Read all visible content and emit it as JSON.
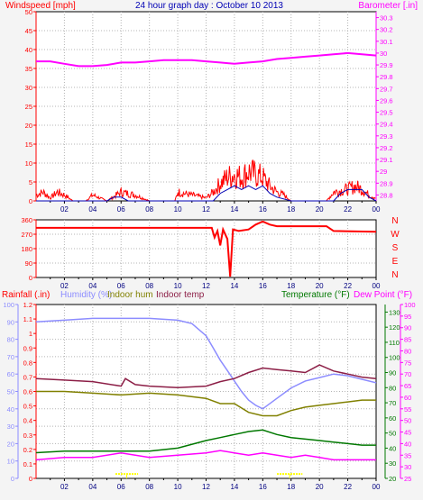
{
  "header": {
    "left_title": "Windspeed [mph]",
    "center_title": "24 hour graph day : October 10 2013",
    "right_title": "Barometer [.in]"
  },
  "direction_labels": [
    "N",
    "W",
    "S",
    "E",
    "N"
  ],
  "bottom_header": {
    "rain": "Rainfall (.in)",
    "humidity": "Humidity (%)",
    "indoor_hum": "Indoor hum",
    "indoor_temp": "Indoor temp",
    "temperature": "Temperature (°F)",
    "dew_point": "Dew Point (°F)"
  },
  "colors": {
    "background": "#f4f4f4",
    "plot_bg": "#ffffff",
    "grid": "#b4b4b4",
    "axis": "#000000",
    "red": "#ff0000",
    "blue": "#0000b4",
    "magenta": "#ff00ff",
    "humidity": "#8c8cff",
    "indoor_hum": "#808000",
    "indoor_temp": "#8c1e46",
    "temperature": "#007800",
    "dew_point": "#ff00ff",
    "rain": "#ffff00"
  },
  "chart_data": [
    {
      "type": "line",
      "name": "wind-barometer",
      "x_ticks": [
        "02",
        "04",
        "06",
        "08",
        "10",
        "12",
        "14",
        "16",
        "18",
        "20",
        "22",
        "00"
      ],
      "xlim": [
        0,
        24
      ],
      "left_axis": {
        "ticks": [
          0,
          5,
          10,
          15,
          20,
          25,
          30,
          35,
          40,
          45,
          50
        ],
        "ylim": [
          0,
          50
        ]
      },
      "right_axis": {
        "ticks": [
          28.8,
          28.9,
          29,
          29.1,
          29.2,
          29.3,
          29.4,
          29.5,
          29.6,
          29.7,
          29.8,
          29.9,
          30,
          30.1,
          30.2,
          30.3
        ],
        "ylim": [
          28.75,
          30.35
        ]
      },
      "barometer": [
        [
          0,
          29.93
        ],
        [
          1,
          29.93
        ],
        [
          2,
          29.91
        ],
        [
          3,
          29.89
        ],
        [
          4,
          29.89
        ],
        [
          5,
          29.9
        ],
        [
          6,
          29.92
        ],
        [
          7,
          29.92
        ],
        [
          8,
          29.93
        ],
        [
          9,
          29.94
        ],
        [
          10,
          29.94
        ],
        [
          11,
          29.94
        ],
        [
          12,
          29.93
        ],
        [
          13,
          29.92
        ],
        [
          14,
          29.91
        ],
        [
          15,
          29.92
        ],
        [
          16,
          29.93
        ],
        [
          17,
          29.95
        ],
        [
          18,
          29.96
        ],
        [
          19,
          29.97
        ],
        [
          20,
          29.98
        ],
        [
          21,
          29.99
        ],
        [
          22,
          30.0
        ],
        [
          23,
          29.99
        ],
        [
          24,
          29.98
        ]
      ],
      "gust_envelope": [
        [
          0,
          2
        ],
        [
          0.5,
          3
        ],
        [
          1,
          1
        ],
        [
          1.5,
          3
        ],
        [
          2,
          2
        ],
        [
          2.6,
          0
        ],
        [
          3.5,
          0
        ],
        [
          4,
          2
        ],
        [
          5,
          0
        ],
        [
          6,
          3
        ],
        [
          7,
          2
        ],
        [
          7.5,
          1
        ],
        [
          8,
          0
        ],
        [
          9.8,
          0
        ],
        [
          10,
          3
        ],
        [
          11,
          2
        ],
        [
          12,
          1
        ],
        [
          12.5,
          3
        ],
        [
          13,
          6
        ],
        [
          13.5,
          8
        ],
        [
          14,
          9
        ],
        [
          14.5,
          8
        ],
        [
          15,
          10
        ],
        [
          15.5,
          9
        ],
        [
          16,
          8
        ],
        [
          16.5,
          5
        ],
        [
          17,
          3
        ],
        [
          17.5,
          2
        ],
        [
          18,
          0
        ],
        [
          20.5,
          0
        ],
        [
          21,
          3
        ],
        [
          22,
          4
        ],
        [
          22.5,
          5
        ],
        [
          23,
          4
        ],
        [
          23.5,
          2
        ],
        [
          24,
          1
        ]
      ],
      "avg_wind": [
        [
          0,
          0
        ],
        [
          5,
          0
        ],
        [
          5.5,
          1
        ],
        [
          6,
          1
        ],
        [
          6.5,
          0
        ],
        [
          12.5,
          0
        ],
        [
          13,
          2
        ],
        [
          13.5,
          3
        ],
        [
          14,
          4
        ],
        [
          14.5,
          3
        ],
        [
          15,
          4
        ],
        [
          15.5,
          3
        ],
        [
          16,
          4
        ],
        [
          16.5,
          2
        ],
        [
          17,
          1
        ],
        [
          18,
          0
        ],
        [
          21,
          0
        ],
        [
          21.5,
          2
        ],
        [
          22,
          3
        ],
        [
          23,
          3
        ],
        [
          23.5,
          1
        ],
        [
          24,
          0
        ]
      ]
    },
    {
      "type": "line",
      "name": "wind-direction",
      "x_ticks": [
        "02",
        "04",
        "06",
        "08",
        "10",
        "12",
        "14",
        "16",
        "18",
        "20",
        "22",
        "00"
      ],
      "xlim": [
        0,
        24
      ],
      "y_ticks": [
        0,
        90,
        180,
        270,
        360
      ],
      "ylim": [
        0,
        360
      ],
      "direction": [
        [
          0,
          310
        ],
        [
          12.4,
          310
        ],
        [
          12.6,
          250
        ],
        [
          12.8,
          290
        ],
        [
          13.0,
          200
        ],
        [
          13.2,
          300
        ],
        [
          13.5,
          240
        ],
        [
          13.7,
          5
        ],
        [
          13.9,
          300
        ],
        [
          14.3,
          290
        ],
        [
          15.0,
          300
        ],
        [
          15.5,
          330
        ],
        [
          16,
          350
        ],
        [
          16.5,
          330
        ],
        [
          17,
          320
        ],
        [
          20.5,
          320
        ],
        [
          21.0,
          290
        ],
        [
          24,
          285
        ]
      ]
    },
    {
      "type": "line",
      "name": "rain-humidity-temperature",
      "x_ticks": [
        "02",
        "04",
        "06",
        "08",
        "10",
        "12",
        "14",
        "16",
        "18",
        "20",
        "22",
        "00"
      ],
      "xlim": [
        0,
        24
      ],
      "humidity_axis": {
        "ticks": [
          0,
          10,
          20,
          30,
          40,
          50,
          60,
          70,
          80,
          90,
          100
        ],
        "ylim": [
          0,
          100
        ]
      },
      "rain_axis": {
        "ticks": [
          0,
          0.1,
          0.2,
          0.3,
          0.4,
          0.5,
          0.6,
          0.7,
          0.8,
          0.9,
          1,
          1.1,
          1.2
        ],
        "ylim": [
          0,
          1.2
        ]
      },
      "temperature_axis": {
        "ticks": [
          20,
          30,
          40,
          50,
          60,
          70,
          80,
          90,
          100,
          110,
          120,
          130
        ],
        "ylim": [
          20,
          135
        ]
      },
      "dew_axis": {
        "ticks": [
          25,
          30,
          35,
          40,
          45,
          50,
          55,
          60,
          65,
          70,
          75,
          80,
          85,
          90,
          95,
          100
        ],
        "ylim": [
          25,
          100
        ]
      },
      "humidity": [
        [
          0,
          90
        ],
        [
          2,
          91
        ],
        [
          4,
          92
        ],
        [
          6,
          92
        ],
        [
          8,
          92
        ],
        [
          10,
          91
        ],
        [
          11,
          89
        ],
        [
          12,
          82
        ],
        [
          12.5,
          75
        ],
        [
          13,
          68
        ],
        [
          13.5,
          62
        ],
        [
          14,
          56
        ],
        [
          14.5,
          50
        ],
        [
          15,
          45
        ],
        [
          15.5,
          42
        ],
        [
          16,
          40
        ],
        [
          17,
          46
        ],
        [
          18,
          52
        ],
        [
          19,
          56
        ],
        [
          20,
          58
        ],
        [
          21,
          60
        ],
        [
          22,
          59
        ],
        [
          23,
          57
        ],
        [
          24,
          55
        ]
      ],
      "indoor_hum": [
        [
          0,
          50
        ],
        [
          2,
          50
        ],
        [
          4,
          49
        ],
        [
          6,
          48
        ],
        [
          8,
          49
        ],
        [
          10,
          48
        ],
        [
          12,
          46
        ],
        [
          13,
          43
        ],
        [
          14,
          43
        ],
        [
          15,
          38
        ],
        [
          16,
          36
        ],
        [
          17,
          36
        ],
        [
          18,
          39
        ],
        [
          19,
          41
        ],
        [
          20,
          42
        ],
        [
          21,
          43
        ],
        [
          22,
          44
        ],
        [
          23,
          45
        ],
        [
          24,
          45
        ]
      ],
      "indoor_temp": [
        [
          0,
          86
        ],
        [
          2,
          85
        ],
        [
          4,
          84
        ],
        [
          6,
          81
        ],
        [
          6.3,
          86
        ],
        [
          7,
          82
        ],
        [
          8,
          81
        ],
        [
          10,
          80
        ],
        [
          12,
          81
        ],
        [
          13,
          84
        ],
        [
          14,
          86
        ],
        [
          15,
          90
        ],
        [
          16,
          93
        ],
        [
          17,
          92
        ],
        [
          18,
          91
        ],
        [
          19,
          90
        ],
        [
          19.8,
          94
        ],
        [
          20,
          95
        ],
        [
          21,
          91
        ],
        [
          22,
          89
        ],
        [
          23,
          87
        ],
        [
          24,
          86
        ]
      ],
      "temperature": [
        [
          0,
          37
        ],
        [
          2,
          38
        ],
        [
          4,
          38
        ],
        [
          6,
          38
        ],
        [
          8,
          38
        ],
        [
          10,
          40
        ],
        [
          12,
          45
        ],
        [
          13,
          47
        ],
        [
          14,
          49
        ],
        [
          15,
          51
        ],
        [
          16,
          52
        ],
        [
          17,
          49
        ],
        [
          18,
          47
        ],
        [
          19,
          46
        ],
        [
          20,
          45
        ],
        [
          21,
          44
        ],
        [
          22,
          43
        ],
        [
          23,
          42
        ],
        [
          24,
          42
        ]
      ],
      "dew_point": [
        [
          0,
          33
        ],
        [
          2,
          34
        ],
        [
          4,
          34
        ],
        [
          6,
          36
        ],
        [
          8,
          34
        ],
        [
          10,
          35
        ],
        [
          12,
          36
        ],
        [
          13,
          37
        ],
        [
          14,
          36
        ],
        [
          15,
          35
        ],
        [
          16,
          36
        ],
        [
          17,
          35
        ],
        [
          18,
          34
        ],
        [
          19,
          35
        ],
        [
          20,
          34
        ],
        [
          21,
          33
        ],
        [
          22,
          33
        ],
        [
          23,
          33
        ],
        [
          24,
          33
        ]
      ],
      "rain": [
        [
          5.6,
          0.03
        ],
        [
          7.2,
          0.03
        ],
        [
          17.0,
          0.03
        ],
        [
          18.8,
          0.03
        ]
      ]
    }
  ]
}
